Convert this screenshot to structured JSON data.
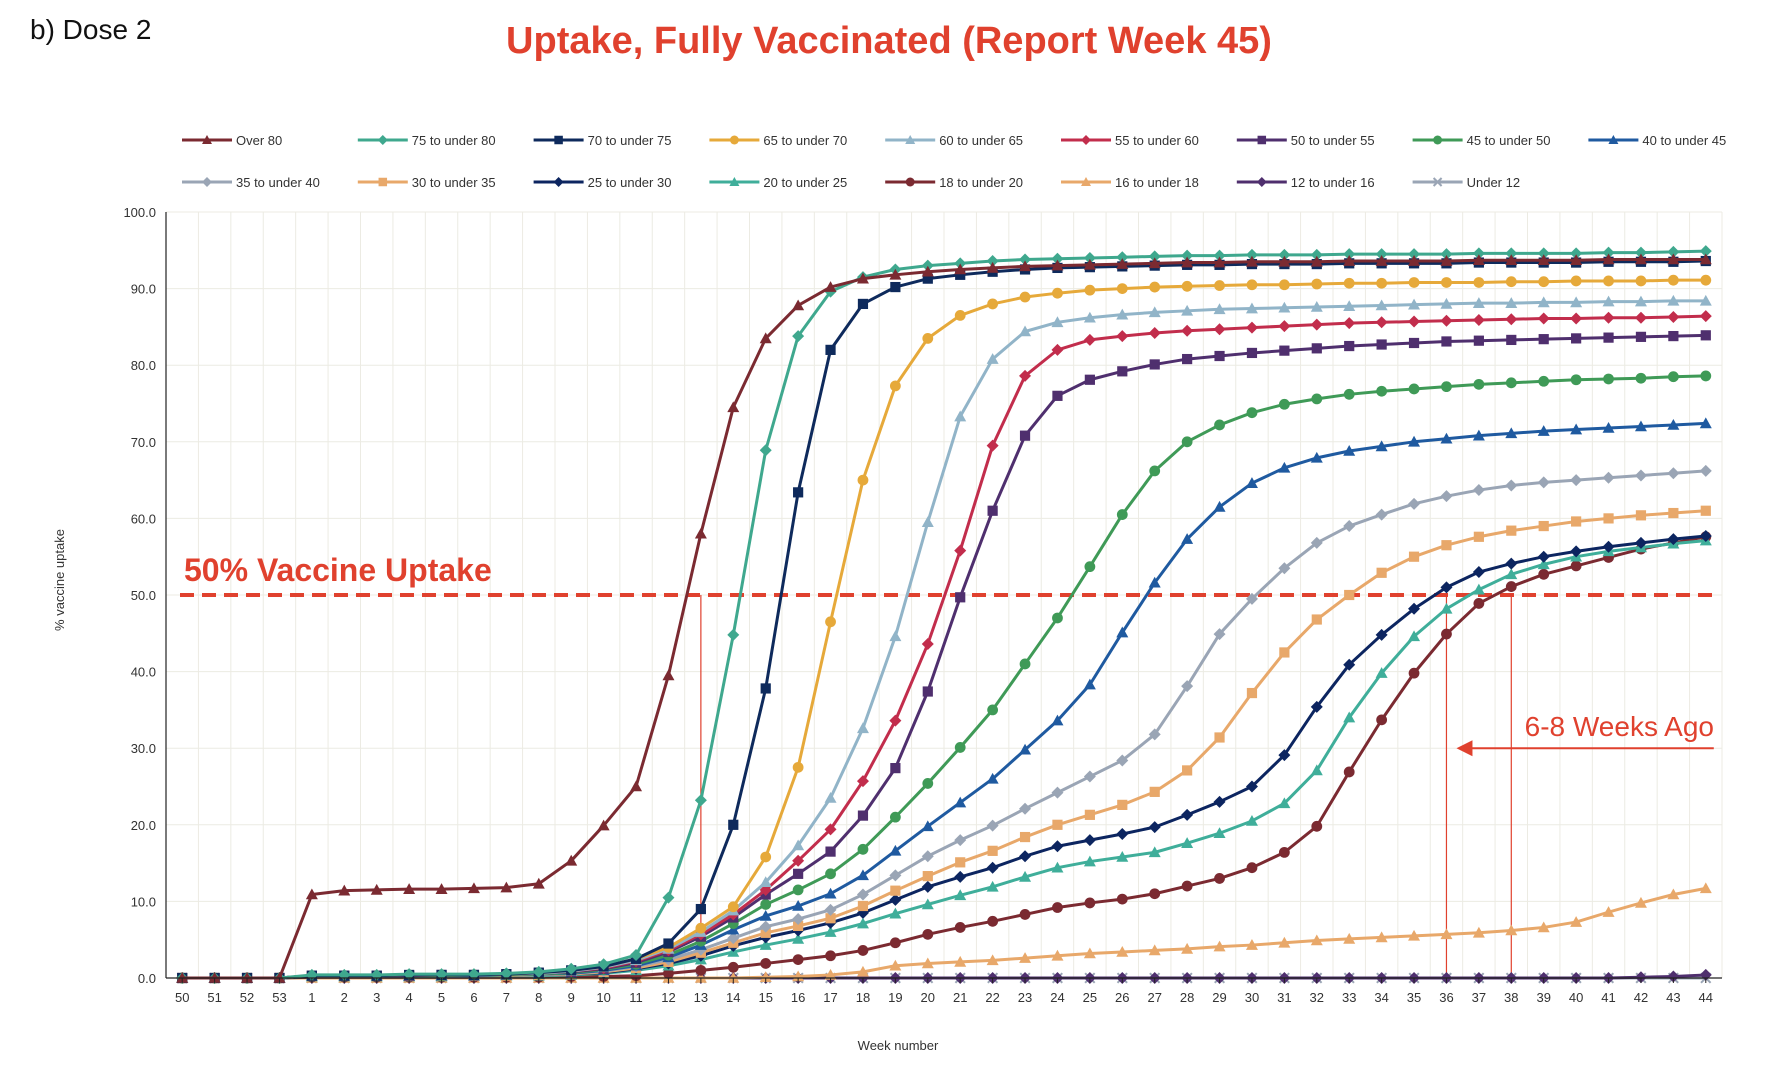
{
  "panel_label": "b) Dose 2",
  "chart_data": {
    "type": "line",
    "title": "Uptake, Fully Vaccinated (Report Week 45)",
    "xlabel": "Week number",
    "ylabel": "% vaccine uptake",
    "ylim": [
      0,
      100
    ],
    "yticks": [
      "0.0",
      "10.0",
      "20.0",
      "30.0",
      "40.0",
      "50.0",
      "60.0",
      "70.0",
      "80.0",
      "90.0",
      "100.0"
    ],
    "categories": [
      "50",
      "51",
      "52",
      "53",
      "1",
      "2",
      "3",
      "4",
      "5",
      "6",
      "7",
      "8",
      "9",
      "10",
      "11",
      "12",
      "13",
      "14",
      "15",
      "16",
      "17",
      "18",
      "19",
      "20",
      "21",
      "22",
      "23",
      "24",
      "25",
      "26",
      "27",
      "28",
      "29",
      "30",
      "31",
      "32",
      "33",
      "34",
      "35",
      "36",
      "37",
      "38",
      "39",
      "40",
      "41",
      "42",
      "43",
      "44"
    ],
    "grid": true,
    "legend_position": "top",
    "series": [
      {
        "name": "Over 80",
        "color": "#7b2a31",
        "marker": "triangle",
        "values": [
          0.0,
          0.0,
          0.0,
          0.0,
          10.9,
          11.4,
          11.5,
          11.6,
          11.6,
          11.7,
          11.8,
          12.3,
          15.3,
          19.9,
          25.0,
          39.5,
          58.0,
          74.5,
          83.5,
          87.8,
          90.2,
          91.3,
          91.8,
          92.2,
          92.5,
          92.7,
          92.9,
          93.0,
          93.1,
          93.2,
          93.3,
          93.4,
          93.4,
          93.5,
          93.5,
          93.5,
          93.6,
          93.6,
          93.6,
          93.6,
          93.7,
          93.7,
          93.7,
          93.7,
          93.8,
          93.8,
          93.8,
          93.8
        ]
      },
      {
        "name": "75 to under 80",
        "color": "#3fa88e",
        "marker": "diamond",
        "values": [
          0.0,
          0.0,
          0.0,
          0.0,
          0.4,
          0.4,
          0.4,
          0.5,
          0.5,
          0.5,
          0.6,
          0.8,
          1.2,
          1.8,
          3.0,
          10.5,
          23.2,
          44.8,
          68.9,
          83.8,
          89.6,
          91.5,
          92.5,
          93.0,
          93.3,
          93.6,
          93.8,
          93.9,
          94.0,
          94.1,
          94.2,
          94.3,
          94.3,
          94.4,
          94.4,
          94.4,
          94.5,
          94.5,
          94.5,
          94.5,
          94.6,
          94.6,
          94.6,
          94.6,
          94.7,
          94.7,
          94.8,
          94.9
        ]
      },
      {
        "name": "70 to under 75",
        "color": "#0e2a5c",
        "marker": "square",
        "values": [
          0.0,
          0.0,
          0.0,
          0.0,
          0.3,
          0.3,
          0.3,
          0.4,
          0.4,
          0.4,
          0.5,
          0.7,
          1.0,
          1.5,
          2.5,
          4.5,
          9.0,
          20.0,
          37.8,
          63.4,
          82.0,
          88.0,
          90.2,
          91.3,
          91.8,
          92.2,
          92.5,
          92.7,
          92.8,
          92.9,
          93.0,
          93.1,
          93.1,
          93.2,
          93.2,
          93.2,
          93.3,
          93.3,
          93.3,
          93.3,
          93.4,
          93.4,
          93.4,
          93.4,
          93.5,
          93.5,
          93.5,
          93.6
        ]
      },
      {
        "name": "65 to under 70",
        "color": "#e6a93a",
        "marker": "circle",
        "values": [
          0.0,
          0.0,
          0.0,
          0.0,
          0.3,
          0.3,
          0.3,
          0.4,
          0.4,
          0.4,
          0.5,
          0.7,
          1.0,
          1.5,
          2.5,
          4.0,
          6.5,
          9.3,
          15.8,
          27.5,
          46.5,
          65.0,
          77.3,
          83.5,
          86.5,
          88.0,
          88.9,
          89.4,
          89.8,
          90.0,
          90.2,
          90.3,
          90.4,
          90.5,
          90.5,
          90.6,
          90.7,
          90.7,
          90.8,
          90.8,
          90.8,
          90.9,
          90.9,
          91.0,
          91.0,
          91.0,
          91.1,
          91.1
        ]
      },
      {
        "name": "60 to under 65",
        "color": "#91b4c8",
        "marker": "triangle",
        "values": [
          0.0,
          0.0,
          0.0,
          0.0,
          0.3,
          0.3,
          0.3,
          0.4,
          0.4,
          0.4,
          0.5,
          0.6,
          0.9,
          1.4,
          2.3,
          3.8,
          6.0,
          8.8,
          12.5,
          17.3,
          23.5,
          32.6,
          44.6,
          59.5,
          73.3,
          80.8,
          84.4,
          85.6,
          86.2,
          86.6,
          86.9,
          87.1,
          87.3,
          87.4,
          87.5,
          87.6,
          87.7,
          87.8,
          87.9,
          88.0,
          88.1,
          88.1,
          88.2,
          88.2,
          88.3,
          88.3,
          88.4,
          88.4
        ]
      },
      {
        "name": "55 to under 60",
        "color": "#c22d4c",
        "marker": "diamond",
        "values": [
          0.0,
          0.0,
          0.0,
          0.0,
          0.3,
          0.3,
          0.3,
          0.4,
          0.4,
          0.4,
          0.5,
          0.6,
          0.9,
          1.3,
          2.2,
          3.6,
          5.7,
          8.3,
          11.5,
          15.3,
          19.4,
          25.7,
          33.6,
          43.6,
          55.8,
          69.5,
          78.6,
          82.0,
          83.3,
          83.8,
          84.2,
          84.5,
          84.7,
          84.9,
          85.1,
          85.3,
          85.5,
          85.6,
          85.7,
          85.8,
          85.9,
          86.0,
          86.1,
          86.1,
          86.2,
          86.2,
          86.3,
          86.4
        ]
      },
      {
        "name": "50 to under 55",
        "color": "#4f2f6e",
        "marker": "square",
        "values": [
          0.0,
          0.0,
          0.0,
          0.0,
          0.3,
          0.3,
          0.3,
          0.3,
          0.4,
          0.4,
          0.5,
          0.6,
          0.8,
          1.2,
          2.0,
          3.4,
          5.4,
          7.9,
          10.9,
          13.6,
          16.5,
          21.2,
          27.4,
          37.4,
          49.7,
          61.0,
          70.8,
          76.0,
          78.1,
          79.2,
          80.1,
          80.8,
          81.2,
          81.6,
          81.9,
          82.2,
          82.5,
          82.7,
          82.9,
          83.1,
          83.2,
          83.3,
          83.4,
          83.5,
          83.6,
          83.7,
          83.8,
          83.9
        ]
      },
      {
        "name": "45 to under 50",
        "color": "#3f9a57",
        "marker": "circle",
        "values": [
          0.0,
          0.0,
          0.0,
          0.0,
          0.3,
          0.3,
          0.3,
          0.3,
          0.3,
          0.4,
          0.4,
          0.5,
          0.7,
          1.1,
          1.8,
          3.0,
          4.8,
          7.1,
          9.6,
          11.5,
          13.6,
          16.8,
          21.0,
          25.4,
          30.1,
          35.0,
          41.0,
          47.0,
          53.7,
          60.5,
          66.2,
          70.0,
          72.2,
          73.8,
          74.9,
          75.6,
          76.2,
          76.6,
          76.9,
          77.2,
          77.5,
          77.7,
          77.9,
          78.1,
          78.2,
          78.3,
          78.5,
          78.6
        ]
      },
      {
        "name": "40 to under 45",
        "color": "#1f5aa0",
        "marker": "triangle",
        "values": [
          0.0,
          0.0,
          0.0,
          0.0,
          0.3,
          0.3,
          0.3,
          0.3,
          0.3,
          0.3,
          0.4,
          0.5,
          0.6,
          1.0,
          1.6,
          2.7,
          4.3,
          6.3,
          8.1,
          9.4,
          11.0,
          13.4,
          16.6,
          19.8,
          22.9,
          26.0,
          29.8,
          33.6,
          38.3,
          45.1,
          51.6,
          57.3,
          61.5,
          64.6,
          66.6,
          67.9,
          68.8,
          69.4,
          70.0,
          70.4,
          70.8,
          71.1,
          71.4,
          71.6,
          71.8,
          72.0,
          72.2,
          72.4
        ]
      },
      {
        "name": "35 to under 40",
        "color": "#9aa5b5",
        "marker": "diamond",
        "values": [
          0.0,
          0.0,
          0.0,
          0.0,
          0.3,
          0.3,
          0.3,
          0.3,
          0.3,
          0.3,
          0.4,
          0.4,
          0.6,
          0.9,
          1.5,
          2.4,
          3.7,
          5.2,
          6.7,
          7.7,
          8.9,
          10.9,
          13.4,
          15.9,
          18.0,
          19.9,
          22.1,
          24.2,
          26.3,
          28.4,
          31.8,
          38.1,
          44.9,
          49.5,
          53.5,
          56.8,
          59.0,
          60.5,
          61.9,
          62.9,
          63.7,
          64.3,
          64.7,
          65.0,
          65.3,
          65.6,
          65.9,
          66.2
        ]
      },
      {
        "name": "30 to under 35",
        "color": "#e8a86a",
        "marker": "square",
        "values": [
          0.0,
          0.0,
          0.0,
          0.0,
          0.3,
          0.3,
          0.3,
          0.3,
          0.3,
          0.3,
          0.3,
          0.4,
          0.5,
          0.8,
          1.3,
          2.1,
          3.3,
          4.6,
          5.9,
          6.8,
          7.8,
          9.4,
          11.4,
          13.3,
          15.1,
          16.6,
          18.4,
          20.0,
          21.3,
          22.6,
          24.3,
          27.1,
          31.4,
          37.2,
          42.5,
          46.8,
          50.0,
          52.9,
          55.0,
          56.5,
          57.6,
          58.4,
          59.0,
          59.6,
          60.0,
          60.4,
          60.7,
          61.0
        ]
      },
      {
        "name": "25 to under 30",
        "color": "#0c2560",
        "marker": "diamond",
        "values": [
          0.0,
          0.0,
          0.0,
          0.0,
          0.2,
          0.2,
          0.2,
          0.3,
          0.3,
          0.3,
          0.3,
          0.4,
          0.5,
          0.7,
          1.2,
          1.9,
          2.9,
          4.2,
          5.3,
          6.2,
          7.2,
          8.5,
          10.2,
          11.9,
          13.2,
          14.4,
          15.9,
          17.2,
          18.0,
          18.8,
          19.7,
          21.3,
          23.0,
          25.0,
          29.1,
          35.4,
          40.9,
          44.8,
          48.2,
          51.0,
          53.0,
          54.1,
          55.0,
          55.7,
          56.3,
          56.8,
          57.3,
          57.7
        ]
      },
      {
        "name": "20 to under 25",
        "color": "#3fae9a",
        "marker": "triangle",
        "values": [
          0.0,
          0.0,
          0.0,
          0.0,
          0.2,
          0.2,
          0.2,
          0.2,
          0.2,
          0.3,
          0.3,
          0.3,
          0.4,
          0.6,
          1.0,
          1.6,
          2.4,
          3.4,
          4.3,
          5.1,
          6.0,
          7.1,
          8.4,
          9.6,
          10.8,
          11.9,
          13.2,
          14.4,
          15.2,
          15.8,
          16.4,
          17.6,
          18.9,
          20.5,
          22.8,
          27.1,
          34.0,
          39.8,
          44.6,
          48.2,
          50.7,
          52.7,
          54.0,
          55.0,
          55.7,
          56.2,
          56.7,
          57.1
        ]
      },
      {
        "name": "18 to under 20",
        "color": "#7b2a31",
        "marker": "circle",
        "values": [
          0.0,
          0.0,
          0.0,
          0.0,
          0.1,
          0.1,
          0.1,
          0.1,
          0.1,
          0.1,
          0.1,
          0.1,
          0.2,
          0.2,
          0.3,
          0.6,
          1.0,
          1.4,
          1.9,
          2.4,
          2.9,
          3.6,
          4.6,
          5.7,
          6.6,
          7.4,
          8.3,
          9.2,
          9.8,
          10.3,
          11.0,
          12.0,
          13.0,
          14.4,
          16.4,
          19.8,
          26.9,
          33.7,
          39.8,
          44.9,
          48.9,
          51.1,
          52.7,
          53.8,
          54.9,
          56.0,
          56.8,
          57.6
        ]
      },
      {
        "name": "16 to under 18",
        "color": "#e8a86a",
        "marker": "triangle",
        "values": [
          0.0,
          0.0,
          0.0,
          0.0,
          0.0,
          0.0,
          0.0,
          0.0,
          0.0,
          0.0,
          0.0,
          0.0,
          0.0,
          0.0,
          0.0,
          0.0,
          0.0,
          0.0,
          0.1,
          0.2,
          0.4,
          0.8,
          1.6,
          1.9,
          2.1,
          2.3,
          2.6,
          2.9,
          3.2,
          3.4,
          3.6,
          3.8,
          4.1,
          4.3,
          4.6,
          4.9,
          5.1,
          5.3,
          5.5,
          5.7,
          5.9,
          6.2,
          6.6,
          7.3,
          8.6,
          9.8,
          10.9,
          11.7
        ]
      },
      {
        "name": "12 to under 16",
        "color": "#4f2f6e",
        "marker": "diamond",
        "values": [
          0.0,
          0.0,
          0.0,
          0.0,
          0.0,
          0.0,
          0.0,
          0.0,
          0.0,
          0.0,
          0.0,
          0.0,
          0.0,
          0.0,
          0.0,
          0.0,
          0.0,
          0.0,
          0.0,
          0.0,
          0.0,
          0.0,
          0.0,
          0.0,
          0.0,
          0.0,
          0.0,
          0.0,
          0.0,
          0.0,
          0.0,
          0.0,
          0.0,
          0.0,
          0.0,
          0.0,
          0.0,
          0.0,
          0.0,
          0.0,
          0.0,
          0.0,
          0.0,
          0.0,
          0.0,
          0.1,
          0.2,
          0.4
        ]
      },
      {
        "name": "Under 12",
        "color": "#9aa5b5",
        "marker": "x",
        "values": [
          0.0,
          0.0,
          0.0,
          0.0,
          0.0,
          0.0,
          0.0,
          0.0,
          0.0,
          0.0,
          0.0,
          0.0,
          0.0,
          0.0,
          0.0,
          0.0,
          0.0,
          0.0,
          0.0,
          0.0,
          0.0,
          0.0,
          0.0,
          0.0,
          0.0,
          0.0,
          0.0,
          0.0,
          0.0,
          0.0,
          0.0,
          0.0,
          0.0,
          0.0,
          0.0,
          0.0,
          0.0,
          0.0,
          0.0,
          0.0,
          0.0,
          0.0,
          0.0,
          0.0,
          0.0,
          0.0,
          0.0,
          0.0
        ]
      }
    ],
    "annotations": {
      "threshold": {
        "label": "50% Vaccine Uptake",
        "value": 50,
        "color": "#e0412e"
      },
      "arrow": {
        "label": "6-8 Weeks Ago",
        "color": "#e0412e",
        "from_week": "44",
        "to_week": "36",
        "y": 30
      },
      "vertical_markers": [
        {
          "week": "13",
          "color": "#e0412e"
        },
        {
          "week": "36",
          "color": "#e0412e"
        },
        {
          "week": "38",
          "color": "#e0412e"
        }
      ]
    }
  }
}
